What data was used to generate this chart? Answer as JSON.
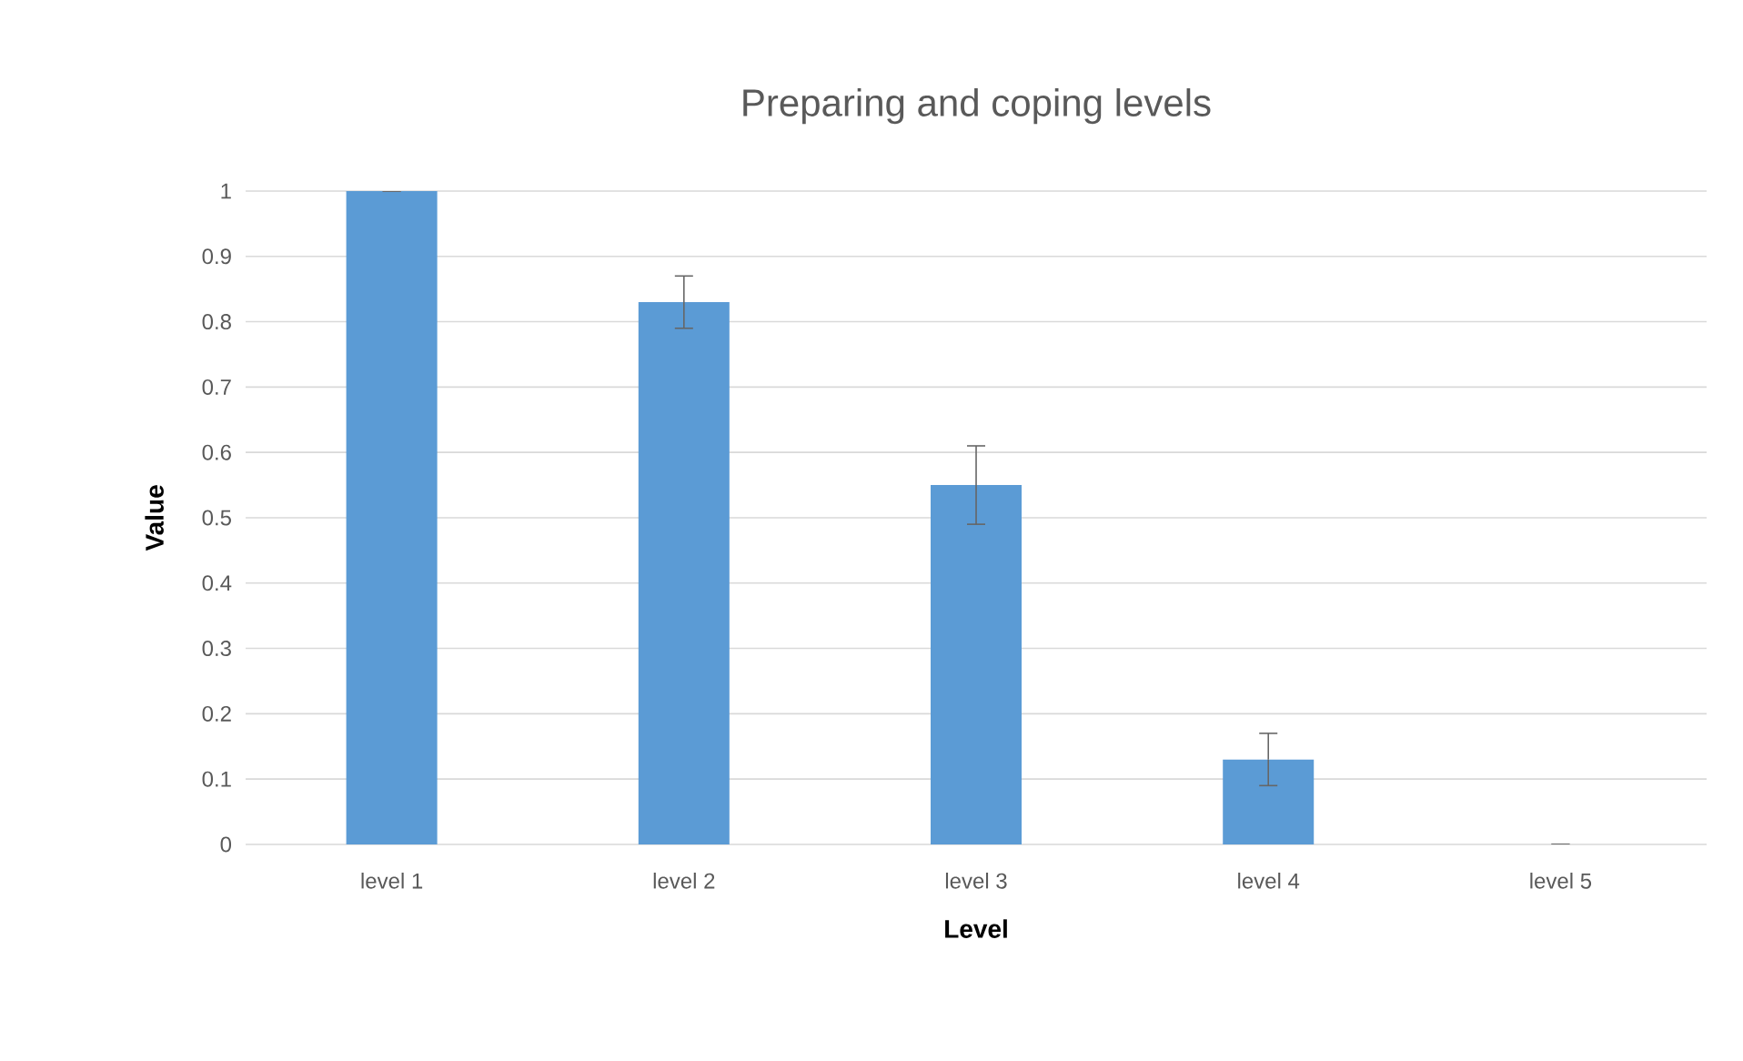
{
  "chart_data": {
    "type": "bar",
    "title": "Preparing and coping levels",
    "xlabel": "Level",
    "ylabel": "Value",
    "categories": [
      "level 1",
      "level 2",
      "level 3",
      "level 4",
      "level 5"
    ],
    "values": [
      1,
      0.83,
      0.55,
      0.13,
      0
    ],
    "errors": [
      0,
      0.04,
      0.06,
      0.04,
      0
    ],
    "color": "#5b9bd5",
    "ylim": [
      0,
      1
    ],
    "yticks": [
      0,
      0.1,
      0.2,
      0.3,
      0.4,
      0.5,
      0.6,
      0.7,
      0.8,
      0.9,
      1
    ],
    "grid": "y"
  }
}
